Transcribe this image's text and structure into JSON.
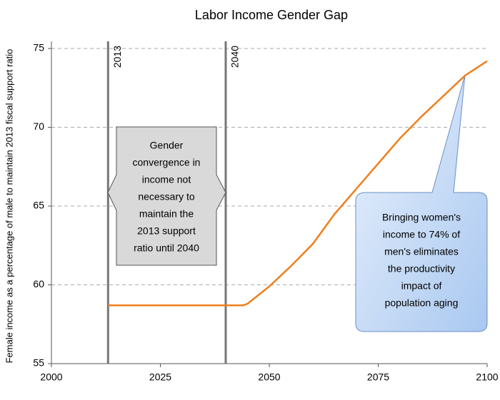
{
  "chart_data": {
    "type": "line",
    "title": "Labor Income Gender Gap",
    "ylabel": "Female income  as a percentage of male to maintain  2013 fiscal support ratio",
    "xlim": [
      2000,
      2100
    ],
    "xticks": [
      2000,
      2025,
      2050,
      2075,
      2100
    ],
    "ylim": [
      55,
      75
    ],
    "yticks": [
      55,
      60,
      65,
      70,
      75
    ],
    "grid": true,
    "series": [
      {
        "color": "#f07f1c",
        "x": [
          2013,
          2044,
          2045,
          2050,
          2055,
          2060,
          2065,
          2070,
          2075,
          2080,
          2085,
          2090,
          2095,
          2100
        ],
        "values": [
          58.7,
          58.7,
          58.8,
          59.9,
          61.2,
          62.6,
          64.5,
          66.1,
          67.7,
          69.3,
          70.7,
          72.0,
          73.3,
          74.2
        ]
      }
    ],
    "markers": [
      {
        "x": 2013
      },
      {
        "x": 2040
      }
    ],
    "annotations": [
      {
        "lines": [
          "Gender",
          "convergence in",
          "income not",
          "necessary to",
          "maintain the",
          "2013 support",
          "ratio until 2040"
        ]
      },
      {
        "lines": [
          "Bringing women's",
          "income to 74% of",
          "men's eliminates",
          "the productivity",
          "impact of",
          "population aging"
        ]
      }
    ]
  }
}
